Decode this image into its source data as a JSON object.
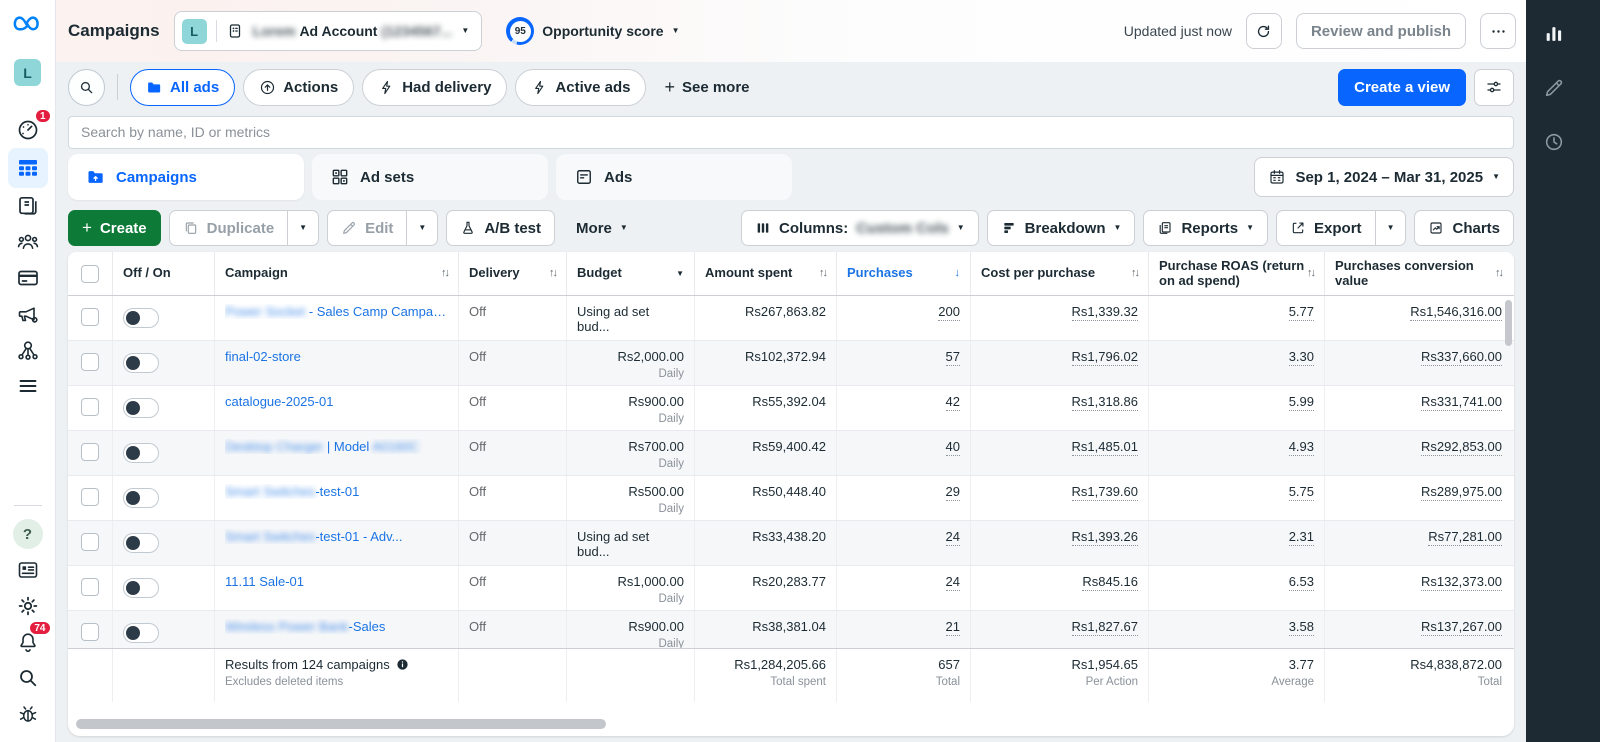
{
  "colors": {
    "accent_blue": "#0866ff",
    "link_blue": "#1b74e4",
    "create_green": "#0e7a37",
    "badge_red": "#e41e3f",
    "dark_navy": "#1c2b33",
    "rail_dark": "#1d2a33"
  },
  "topbar": {
    "title": "Campaigns",
    "account": {
      "avatar_letter": "L",
      "name_blurred": "Lorem",
      "label": "Ad Account",
      "id_blurred": "(1234567..."
    },
    "opportunity": {
      "score": "95",
      "label": "Opportunity score"
    },
    "updated": "Updated just now",
    "review_button": "Review and publish"
  },
  "badges": {
    "home": "1",
    "notifications": "74"
  },
  "filters": {
    "pills": [
      {
        "label": "All ads"
      },
      {
        "label": "Actions"
      },
      {
        "label": "Had delivery"
      },
      {
        "label": "Active ads"
      }
    ],
    "see_more": "See more",
    "create_view": "Create a view"
  },
  "search": {
    "placeholder": "Search by name, ID or metrics"
  },
  "tabs": [
    {
      "label": "Campaigns"
    },
    {
      "label": "Ad sets"
    },
    {
      "label": "Ads"
    }
  ],
  "date_range": "Sep 1, 2024 – Mar 31, 2025",
  "toolbar": {
    "create": "Create",
    "duplicate": "Duplicate",
    "edit": "Edit",
    "ab_test": "A/B test",
    "more": "More",
    "columns_label": "Columns:",
    "columns_value_blurred": "Custom Cols",
    "breakdown": "Breakdown",
    "reports": "Reports",
    "export": "Export",
    "charts": "Charts"
  },
  "table": {
    "headers": {
      "off_on": "Off / On",
      "campaign": "Campaign",
      "delivery": "Delivery",
      "budget": "Budget",
      "amount_spent": "Amount spent",
      "purchases": "Purchases",
      "cost_per_purchase": "Cost per purchase",
      "purchase_roas": "Purchase ROAS (return on ad spend)",
      "conversion_value": "Purchases conversion value"
    },
    "rows": [
      {
        "name_parts": [
          {
            "t": "Power Socket",
            "blur": true
          },
          {
            "t": " - Sales Camp Campaign"
          }
        ],
        "delivery": "Off",
        "budget": "Using ad set bud...",
        "budget_sub": "",
        "budget_align": "left",
        "amount_spent": "Rs267,863.82",
        "purchases": "200",
        "cost_per_purchase": "Rs1,339.32",
        "roas": "5.77",
        "conversion_value": "Rs1,546,316.00"
      },
      {
        "name_parts": [
          {
            "t": "final-02-store"
          }
        ],
        "delivery": "Off",
        "budget": "Rs2,000.00",
        "budget_sub": "Daily",
        "budget_align": "right",
        "amount_spent": "Rs102,372.94",
        "purchases": "57",
        "cost_per_purchase": "Rs1,796.02",
        "roas": "3.30",
        "conversion_value": "Rs337,660.00"
      },
      {
        "name_parts": [
          {
            "t": "catalogue-2025-01"
          }
        ],
        "delivery": "Off",
        "budget": "Rs900.00",
        "budget_sub": "Daily",
        "budget_align": "right",
        "amount_spent": "Rs55,392.04",
        "purchases": "42",
        "cost_per_purchase": "Rs1,318.86",
        "roas": "5.99",
        "conversion_value": "Rs331,741.00"
      },
      {
        "name_parts": [
          {
            "t": "Desktop Charger",
            "blur": true
          },
          {
            "t": " | Model "
          },
          {
            "t": "A0160C",
            "blur": true
          }
        ],
        "delivery": "Off",
        "budget": "Rs700.00",
        "budget_sub": "Daily",
        "budget_align": "right",
        "amount_spent": "Rs59,400.42",
        "purchases": "40",
        "cost_per_purchase": "Rs1,485.01",
        "roas": "4.93",
        "conversion_value": "Rs292,853.00"
      },
      {
        "name_parts": [
          {
            "t": "Smart Switches",
            "blur": true
          },
          {
            "t": "-test-01"
          }
        ],
        "delivery": "Off",
        "budget": "Rs500.00",
        "budget_sub": "Daily",
        "budget_align": "right",
        "amount_spent": "Rs50,448.40",
        "purchases": "29",
        "cost_per_purchase": "Rs1,739.60",
        "roas": "5.75",
        "conversion_value": "Rs289,975.00"
      },
      {
        "name_parts": [
          {
            "t": "Smart Switches",
            "blur": true
          },
          {
            "t": "-test-01 - Adv..."
          }
        ],
        "delivery": "Off",
        "budget": "Using ad set bud...",
        "budget_sub": "",
        "budget_align": "left",
        "amount_spent": "Rs33,438.20",
        "purchases": "24",
        "cost_per_purchase": "Rs1,393.26",
        "roas": "2.31",
        "conversion_value": "Rs77,281.00"
      },
      {
        "name_parts": [
          {
            "t": "11.11 Sale-01"
          }
        ],
        "delivery": "Off",
        "budget": "Rs1,000.00",
        "budget_sub": "Daily",
        "budget_align": "right",
        "amount_spent": "Rs20,283.77",
        "purchases": "24",
        "cost_per_purchase": "Rs845.16",
        "roas": "6.53",
        "conversion_value": "Rs132,373.00"
      },
      {
        "name_parts": [
          {
            "t": "Wireless Power Bank",
            "blur": true
          },
          {
            "t": "-Sales"
          }
        ],
        "delivery": "Off",
        "budget": "Rs900.00",
        "budget_sub": "Daily",
        "budget_align": "right",
        "amount_spent": "Rs38,381.04",
        "purchases": "21",
        "cost_per_purchase": "Rs1,827.67",
        "roas": "3.58",
        "conversion_value": "Rs137,267.00"
      }
    ],
    "footer": {
      "results": "Results from 124 campaigns",
      "note": "Excludes deleted items",
      "amount_spent": "Rs1,284,205.66",
      "amount_spent_sub": "Total spent",
      "purchases": "657",
      "purchases_sub": "Total",
      "cost_per_purchase": "Rs1,954.65",
      "cost_per_purchase_sub": "Per Action",
      "roas": "3.77",
      "roas_sub": "Average",
      "conversion_value": "Rs4,838,872.00",
      "conversion_value_sub": "Total"
    }
  }
}
